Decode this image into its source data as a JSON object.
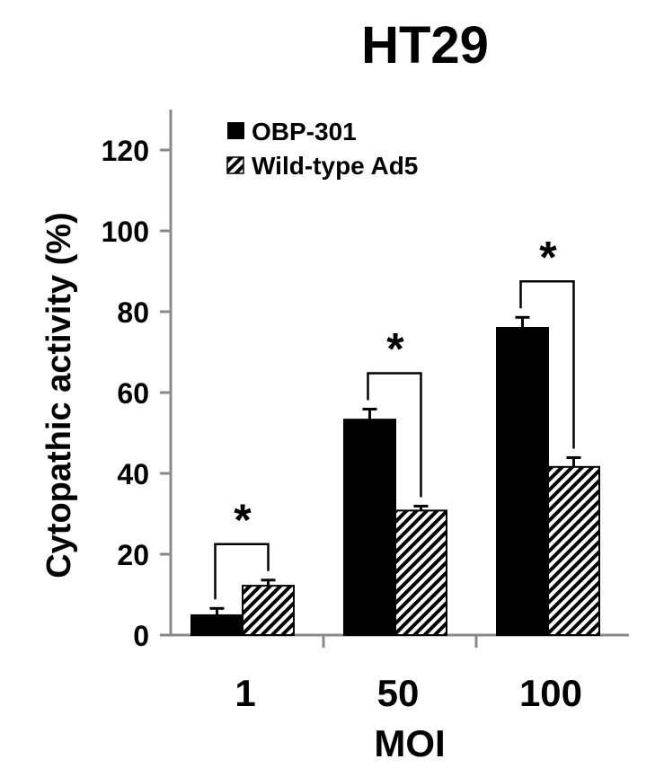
{
  "chart_data": {
    "type": "bar",
    "title": "HT29",
    "xlabel": "MOI",
    "ylabel": "Cytopathic activity (%)",
    "categories": [
      "1",
      "50",
      "100"
    ],
    "ylim": [
      0,
      120
    ],
    "yticks": [
      "0",
      "20",
      "40",
      "60",
      "80",
      "100",
      "120"
    ],
    "grid": false,
    "legend_position": "top-left",
    "series": [
      {
        "name": "OBP-301",
        "values": [
          4.9,
          53.3,
          76.0
        ],
        "errors": [
          1.7,
          2.6,
          2.6
        ],
        "fill": "solid",
        "color": "#000000"
      },
      {
        "name": "Wild-type Ad5",
        "values": [
          12.2,
          30.8,
          41.6
        ],
        "errors": [
          1.4,
          1.1,
          2.3
        ],
        "fill": "hatched",
        "color": "#000000"
      }
    ],
    "significance": [
      {
        "category": "1",
        "label": "*"
      },
      {
        "category": "50",
        "label": "*"
      },
      {
        "category": "100",
        "label": "*"
      }
    ]
  }
}
